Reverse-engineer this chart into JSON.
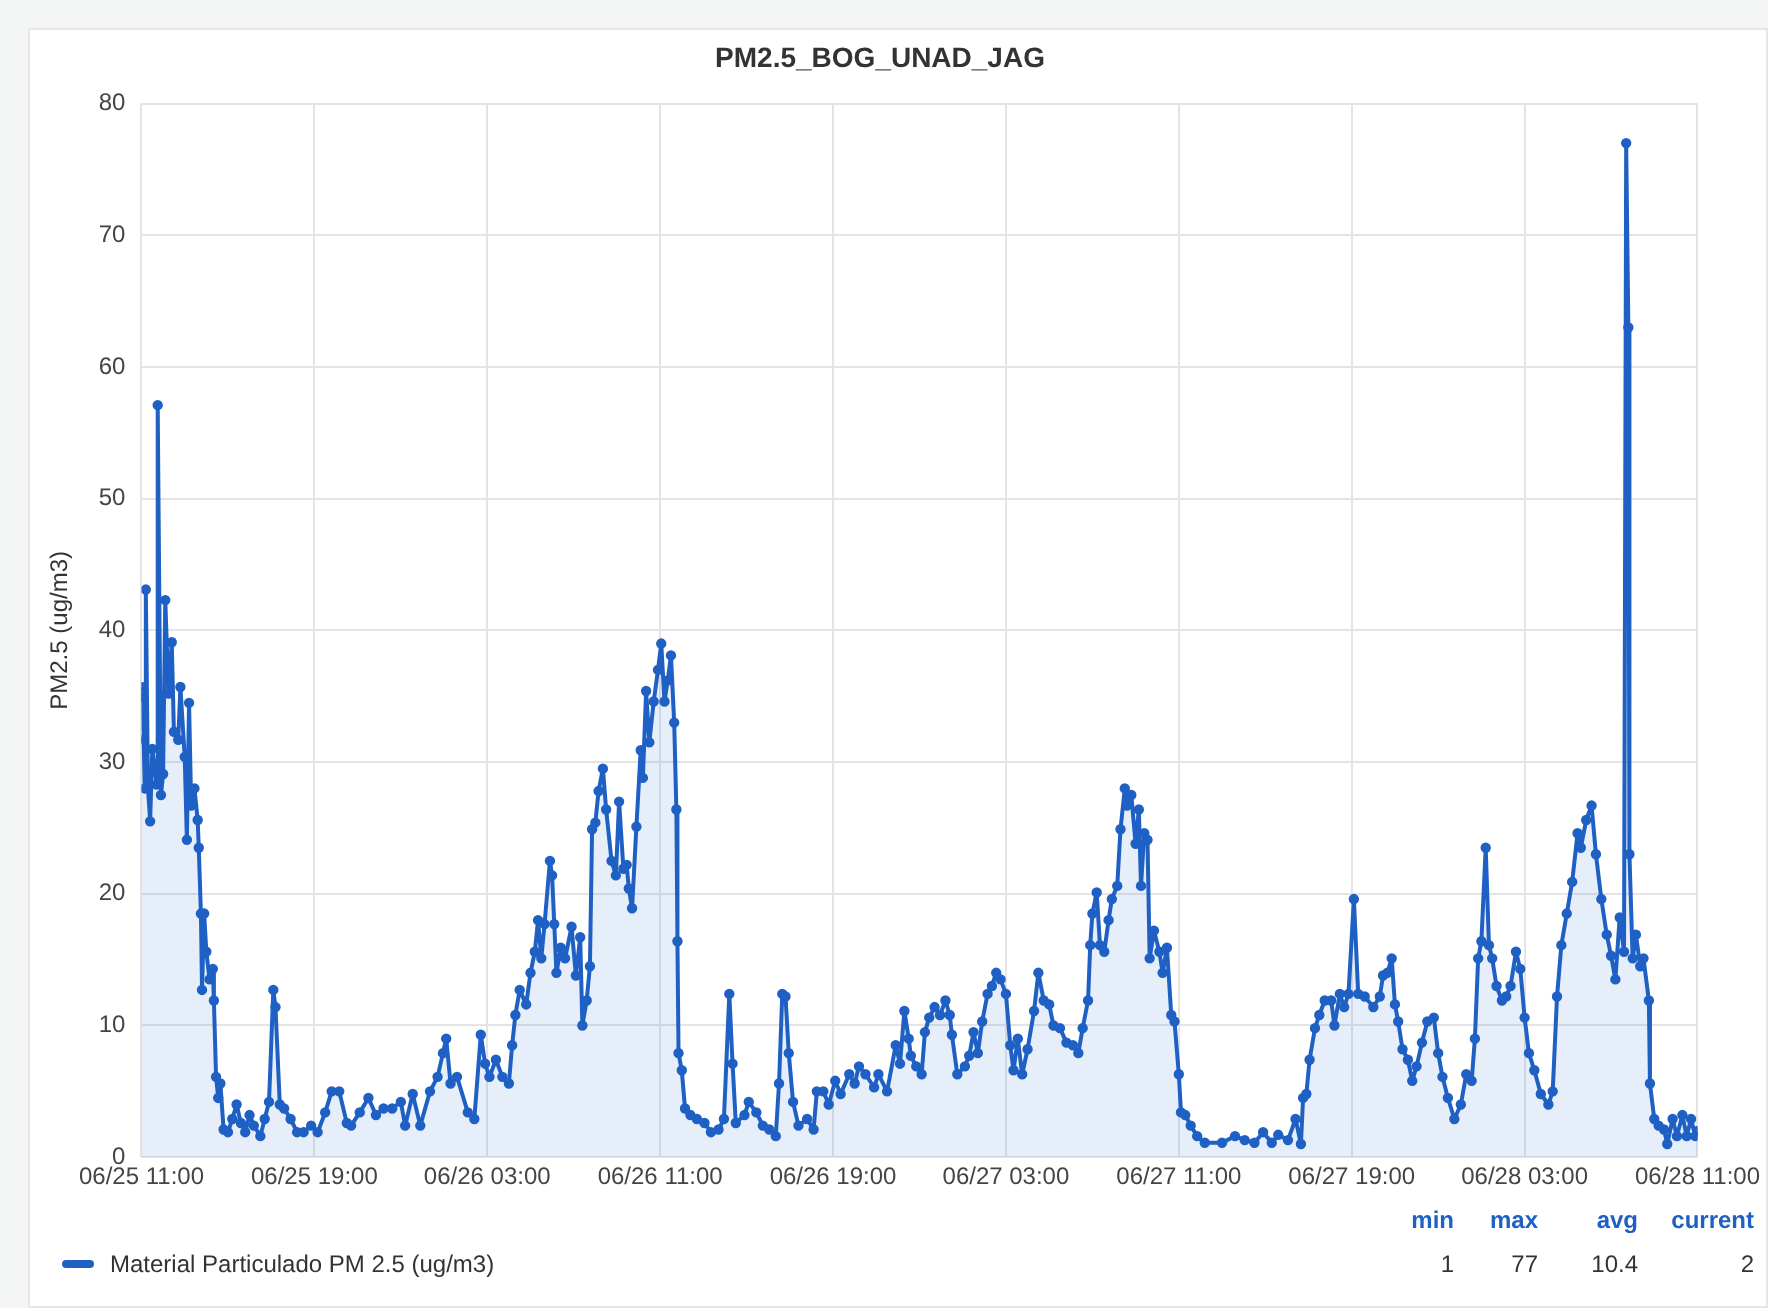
{
  "chart_data": {
    "type": "area",
    "title": "PM2.5_BOG_UNAD_JAG",
    "ylabel": "PM2.5 (ug/m3)",
    "xlim": [
      "--06-25T11:00",
      "--06-28T11:00"
    ],
    "xticks": [
      {
        "value": "--06-25T11:00",
        "label": "06/25 11:00"
      },
      {
        "value": "--06-25T19:00",
        "label": "06/25 19:00"
      },
      {
        "value": "--06-26T03:00",
        "label": "06/26 03:00"
      },
      {
        "value": "--06-26T11:00",
        "label": "06/26 11:00"
      },
      {
        "value": "--06-26T19:00",
        "label": "06/26 19:00"
      },
      {
        "value": "--06-27T03:00",
        "label": "06/27 03:00"
      },
      {
        "value": "--06-27T11:00",
        "label": "06/27 11:00"
      },
      {
        "value": "--06-27T19:00",
        "label": "06/27 19:00"
      },
      {
        "value": "--06-28T03:00",
        "label": "06/28 03:00"
      },
      {
        "value": "--06-28T11:00",
        "label": "06/28 11:00"
      }
    ],
    "ylim": [
      0,
      80
    ],
    "yticks": [
      0,
      10,
      20,
      30,
      40,
      50,
      60,
      70,
      80
    ],
    "grid": true,
    "legend": "bottom",
    "marker": "circle",
    "line_style": "solid",
    "annotations": [
      "min",
      "max",
      "avg",
      "current",
      "1",
      "77",
      "10.4",
      "2"
    ],
    "series": [
      {
        "name": "Material Particulado PM 2.5 (ug/m3)",
        "color": "#1f60c4",
        "x": [
          "--06-25T11:00",
          "--06-25T11:03",
          "--06-25T11:06",
          "--06-25T11:09",
          "--06-25T11:12",
          "--06-25T11:18",
          "--06-25T11:24",
          "--06-25T11:30",
          "--06-25T11:42",
          "--06-25T11:45",
          "--06-25T11:54",
          "--06-25T12:00",
          "--06-25T12:06",
          "--06-25T12:15",
          "--06-25T12:24",
          "--06-25T12:30",
          "--06-25T12:42",
          "--06-25T12:48",
          "--06-25T13:00",
          "--06-25T13:06",
          "--06-25T13:12",
          "--06-25T13:18",
          "--06-25T13:27",
          "--06-25T13:36",
          "--06-25T13:39",
          "--06-25T13:45",
          "--06-25T13:48",
          "--06-25T13:54",
          "--06-25T14:00",
          "--06-25T14:09",
          "--06-25T14:18",
          "--06-25T14:21",
          "--06-25T14:27",
          "--06-25T14:33",
          "--06-25T14:39",
          "--06-25T14:48",
          "--06-25T15:00",
          "--06-25T15:12",
          "--06-25T15:24",
          "--06-25T15:36",
          "--06-25T15:48",
          "--06-25T16:00",
          "--06-25T16:12",
          "--06-25T16:30",
          "--06-25T16:42",
          "--06-25T16:54",
          "--06-25T17:06",
          "--06-25T17:12",
          "--06-25T17:24",
          "--06-25T17:36",
          "--06-25T17:54",
          "--06-25T18:12",
          "--06-25T18:30",
          "--06-25T18:51",
          "--06-25T19:09",
          "--06-25T19:30",
          "--06-25T19:48",
          "--06-25T20:09",
          "--06-25T20:30",
          "--06-25T20:42",
          "--06-25T21:06",
          "--06-25T21:30",
          "--06-25T21:51",
          "--06-25T22:12",
          "--06-25T22:36",
          "--06-25T23:00",
          "--06-25T23:12",
          "--06-25T23:33",
          "--06-25T23:54",
          "--06-26T00:21",
          "--06-26T00:42",
          "--06-26T00:57",
          "--06-26T01:06",
          "--06-26T01:18",
          "--06-26T01:36",
          "--06-26T02:06",
          "--06-26T02:24",
          "--06-26T02:42",
          "--06-26T02:54",
          "--06-26T03:06",
          "--06-26T03:24",
          "--06-26T03:42",
          "--06-26T04:00",
          "--06-26T04:09",
          "--06-26T04:18",
          "--06-26T04:30",
          "--06-26T04:48",
          "--06-26T05:00",
          "--06-26T05:12",
          "--06-26T05:21",
          "--06-26T05:30",
          "--06-26T05:39",
          "--06-26T05:54",
          "--06-26T06:00",
          "--06-26T06:06",
          "--06-26T06:12",
          "--06-26T06:24",
          "--06-26T06:36",
          "--06-26T06:54",
          "--06-26T07:06",
          "--06-26T07:18",
          "--06-26T07:24",
          "--06-26T07:36",
          "--06-26T07:45",
          "--06-26T07:51",
          "--06-26T08:00",
          "--06-26T08:09",
          "--06-26T08:21",
          "--06-26T08:30",
          "--06-26T08:45",
          "--06-26T08:57",
          "--06-26T09:06",
          "--06-26T09:18",
          "--06-26T09:27",
          "--06-26T09:33",
          "--06-26T09:42",
          "--06-26T09:54",
          "--06-26T10:06",
          "--06-26T10:12",
          "--06-26T10:21",
          "--06-26T10:30",
          "--06-26T10:42",
          "--06-26T10:54",
          "--06-26T11:03",
          "--06-26T11:12",
          "--06-26T11:21",
          "--06-26T11:30",
          "--06-26T11:39",
          "--06-26T11:45",
          "--06-26T11:48",
          "--06-26T11:51",
          "--06-26T12:00",
          "--06-26T12:09",
          "--06-26T12:24",
          "--06-26T12:42",
          "--06-26T13:03",
          "--06-26T13:21",
          "--06-26T13:42",
          "--06-26T13:57",
          "--06-26T14:12",
          "--06-26T14:21",
          "--06-26T14:30",
          "--06-26T14:54",
          "--06-26T15:06",
          "--06-26T15:27",
          "--06-26T15:45",
          "--06-26T16:03",
          "--06-26T16:21",
          "--06-26T16:30",
          "--06-26T16:39",
          "--06-26T16:48",
          "--06-26T16:57",
          "--06-26T17:09",
          "--06-26T17:24",
          "--06-26T17:48",
          "--06-26T18:06",
          "--06-26T18:15",
          "--06-26T18:33",
          "--06-26T18:48",
          "--06-26T19:06",
          "--06-26T19:21",
          "--06-26T19:45",
          "--06-26T20:00",
          "--06-26T20:12",
          "--06-26T20:30",
          "--06-26T20:54",
          "--06-26T21:06",
          "--06-26T21:30",
          "--06-26T21:54",
          "--06-26T22:06",
          "--06-26T22:18",
          "--06-26T22:30",
          "--06-26T22:36",
          "--06-26T22:51",
          "--06-26T23:06",
          "--06-26T23:15",
          "--06-26T23:27",
          "--06-26T23:42",
          "--06-26T23:57",
          "--06-27T00:12",
          "--06-27T00:24",
          "--06-27T00:30",
          "--06-27T00:45",
          "--06-27T01:06",
          "--06-27T01:18",
          "--06-27T01:30",
          "--06-27T01:42",
          "--06-27T01:54",
          "--06-27T02:09",
          "--06-27T02:21",
          "--06-27T02:33",
          "--06-27T02:45",
          "--06-27T03:00",
          "--06-27T03:12",
          "--06-27T03:21",
          "--06-27T03:33",
          "--06-27T03:45",
          "--06-27T04:00",
          "--06-27T04:18",
          "--06-27T04:30",
          "--06-27T04:45",
          "--06-27T05:00",
          "--06-27T05:12",
          "--06-27T05:30",
          "--06-27T05:48",
          "--06-27T06:06",
          "--06-27T06:21",
          "--06-27T06:33",
          "--06-27T06:48",
          "--06-27T06:54",
          "--06-27T07:00",
          "--06-27T07:12",
          "--06-27T07:21",
          "--06-27T07:33",
          "--06-27T07:45",
          "--06-27T07:54",
          "--06-27T08:09",
          "--06-27T08:18",
          "--06-27T08:30",
          "--06-27T08:36",
          "--06-27T08:48",
          "--06-27T09:00",
          "--06-27T09:09",
          "--06-27T09:15",
          "--06-27T09:24",
          "--06-27T09:33",
          "--06-27T09:39",
          "--06-27T09:51",
          "--06-27T10:06",
          "--06-27T10:15",
          "--06-27T10:27",
          "--06-27T10:39",
          "--06-27T10:48",
          "--06-27T11:00",
          "--06-27T11:06",
          "--06-27T11:18",
          "--06-27T11:33",
          "--06-27T11:51",
          "--06-27T12:12",
          "--06-27T13:00",
          "--06-27T13:36",
          "--06-27T14:03",
          "--06-27T14:30",
          "--06-27T14:54",
          "--06-27T15:18",
          "--06-27T15:36",
          "--06-27T16:03",
          "--06-27T16:24",
          "--06-27T16:39",
          "--06-27T16:45",
          "--06-27T16:54",
          "--06-27T17:03",
          "--06-27T17:18",
          "--06-27T17:30",
          "--06-27T17:45",
          "--06-27T18:03",
          "--06-27T18:12",
          "--06-27T18:27",
          "--06-27T18:39",
          "--06-27T18:51",
          "--06-27T19:06",
          "--06-27T19:18",
          "--06-27T19:36",
          "--06-27T20:00",
          "--06-27T20:18",
          "--06-27T20:27",
          "--06-27T20:39",
          "--06-27T20:51",
          "--06-27T21:00",
          "--06-27T21:09",
          "--06-27T21:21",
          "--06-27T21:36",
          "--06-27T21:48",
          "--06-27T22:00",
          "--06-27T22:15",
          "--06-27T22:30",
          "--06-27T22:48",
          "--06-27T23:00",
          "--06-27T23:12",
          "--06-27T23:27",
          "--06-27T23:45",
          "--06-28T00:03",
          "--06-28T00:18",
          "--06-28T00:33",
          "--06-28T00:42",
          "--06-28T00:51",
          "--06-28T01:00",
          "--06-28T01:12",
          "--06-28T01:21",
          "--06-28T01:30",
          "--06-28T01:42",
          "--06-28T01:57",
          "--06-28T02:09",
          "--06-28T02:21",
          "--06-28T02:36",
          "--06-28T02:48",
          "--06-28T03:00",
          "--06-28T03:12",
          "--06-28T03:27",
          "--06-28T03:45",
          "--06-28T04:06",
          "--06-28T04:18",
          "--06-28T04:30",
          "--06-28T04:42",
          "--06-28T04:57",
          "--06-28T05:12",
          "--06-28T05:27",
          "--06-28T05:36",
          "--06-28T05:51",
          "--06-28T06:06",
          "--06-28T06:18",
          "--06-28T06:33",
          "--06-28T06:48",
          "--06-28T07:00",
          "--06-28T07:12",
          "--06-28T07:24",
          "--06-28T07:36",
          "--06-28T07:42",
          "--06-28T07:48",
          "--06-28T07:51",
          "--06-28T08:00",
          "--06-28T08:09",
          "--06-28T08:21",
          "--06-28T08:30",
          "--06-28T08:45",
          "--06-28T08:48",
          "--06-28T09:00",
          "--06-28T09:12",
          "--06-28T09:27",
          "--06-28T09:36",
          "--06-28T09:51",
          "--06-28T10:03",
          "--06-28T10:18",
          "--06-28T10:30",
          "--06-28T10:42",
          "--06-28T10:54",
          "--06-28T11:00"
        ],
        "values": [
          35.7,
          34.9,
          31.7,
          28,
          43.1,
          28,
          25.5,
          31,
          28.3,
          57.1,
          27.5,
          29.1,
          42.3,
          35.2,
          39.1,
          32.3,
          31.7,
          35.7,
          30.4,
          24.1,
          34.5,
          26.7,
          28,
          25.6,
          23.5,
          18.5,
          12.7,
          18.5,
          15.6,
          13.5,
          14.3,
          11.9,
          6.1,
          4.5,
          5.6,
          2.1,
          1.9,
          2.9,
          4,
          2.6,
          1.9,
          3.2,
          2.4,
          1.6,
          2.9,
          4.2,
          12.7,
          11.4,
          4,
          3.7,
          2.9,
          1.9,
          1.9,
          2.4,
          1.9,
          3.4,
          5,
          5,
          2.6,
          2.4,
          3.4,
          4.5,
          3.2,
          3.7,
          3.7,
          4.2,
          2.4,
          4.8,
          2.4,
          5,
          6.1,
          7.9,
          9,
          5.6,
          6.1,
          3.4,
          2.9,
          9.3,
          7.1,
          6.1,
          7.4,
          6.1,
          5.6,
          8.5,
          10.8,
          12.7,
          11.6,
          14,
          15.6,
          18,
          15.1,
          17.7,
          22.5,
          21.4,
          17.7,
          14,
          15.9,
          15.1,
          17.5,
          13.8,
          16.7,
          10,
          11.9,
          14.5,
          24.9,
          25.4,
          27.8,
          29.5,
          26.4,
          22.5,
          21.4,
          27,
          21.9,
          22.2,
          20.4,
          18.9,
          25.1,
          30.9,
          28.8,
          35.4,
          31.5,
          34.6,
          37,
          39,
          34.6,
          36.2,
          38.1,
          33,
          26.4,
          16.4,
          7.9,
          6.6,
          3.7,
          3.2,
          2.9,
          2.6,
          1.9,
          2.1,
          2.9,
          12.4,
          7.1,
          2.6,
          3.2,
          4.2,
          3.4,
          2.4,
          2.1,
          1.6,
          5.6,
          12.4,
          12.2,
          7.9,
          4.2,
          2.4,
          2.9,
          2.1,
          5,
          5,
          4,
          5.8,
          4.8,
          6.3,
          5.6,
          6.9,
          6.3,
          5.3,
          6.3,
          5,
          8.5,
          7.1,
          11.1,
          9,
          7.7,
          6.9,
          6.3,
          9.5,
          10.6,
          11.4,
          10.8,
          11.9,
          10.8,
          9.3,
          6.3,
          6.9,
          7.7,
          9.5,
          7.9,
          10.3,
          12.4,
          13,
          14,
          13.5,
          12.4,
          8.5,
          6.6,
          9,
          6.3,
          8.2,
          11.1,
          14,
          11.9,
          11.6,
          10,
          9.8,
          8.7,
          8.5,
          7.9,
          9.8,
          11.9,
          16.1,
          18.5,
          20.1,
          16.1,
          15.6,
          18,
          19.6,
          20.6,
          24.9,
          28,
          26.7,
          27.5,
          23.8,
          26.4,
          20.6,
          24.6,
          24.1,
          15.1,
          17.2,
          15.6,
          14,
          15.9,
          10.8,
          10.3,
          6.3,
          3.4,
          3.2,
          2.4,
          1.6,
          1.1,
          1.1,
          1.6,
          1.3,
          1.1,
          1.9,
          1.1,
          1.7,
          1.3,
          2.9,
          1,
          4.5,
          4.8,
          7.4,
          9.8,
          10.8,
          11.9,
          11.9,
          10,
          12.4,
          11.4,
          12.4,
          19.6,
          12.4,
          12.2,
          11.4,
          12.2,
          13.8,
          14,
          15.1,
          11.6,
          10.3,
          8.2,
          7.4,
          5.8,
          6.9,
          8.7,
          10.3,
          10.6,
          7.9,
          6.1,
          4.5,
          2.9,
          4,
          6.3,
          5.8,
          9,
          15.1,
          16.4,
          23.5,
          16.1,
          15.1,
          13,
          11.9,
          12.2,
          13,
          15.6,
          14.3,
          10.6,
          7.9,
          6.6,
          4.8,
          4,
          5,
          12.2,
          16.1,
          18.5,
          20.9,
          24.6,
          23.5,
          25.6,
          26.7,
          23,
          19.6,
          16.9,
          15.3,
          13.5,
          18.2,
          15.6,
          77,
          63,
          23,
          15.1,
          16.9,
          14.5,
          15.1,
          11.9,
          5.6,
          2.9,
          2.4,
          2.1,
          1,
          2.9,
          1.6,
          3.2,
          1.6,
          2.9,
          1.6,
          2
        ]
      }
    ]
  }
}
